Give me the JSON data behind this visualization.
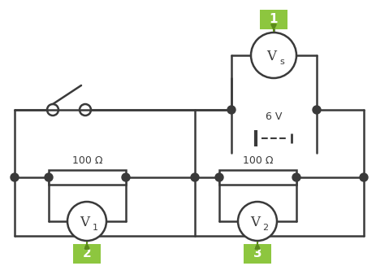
{
  "bg_color": "#ffffff",
  "line_color": "#3a3a3a",
  "green_color": "#8dc63f",
  "green_dark": "#5a8a1a",
  "lw": 1.8,
  "fig_w": 4.64,
  "fig_h": 3.27,
  "dpi": 100,
  "labels": {
    "res1": "100 Ω",
    "res2": "100 Ω",
    "battery": "6 V",
    "node1": "1",
    "node2": "2",
    "node3": "3"
  }
}
